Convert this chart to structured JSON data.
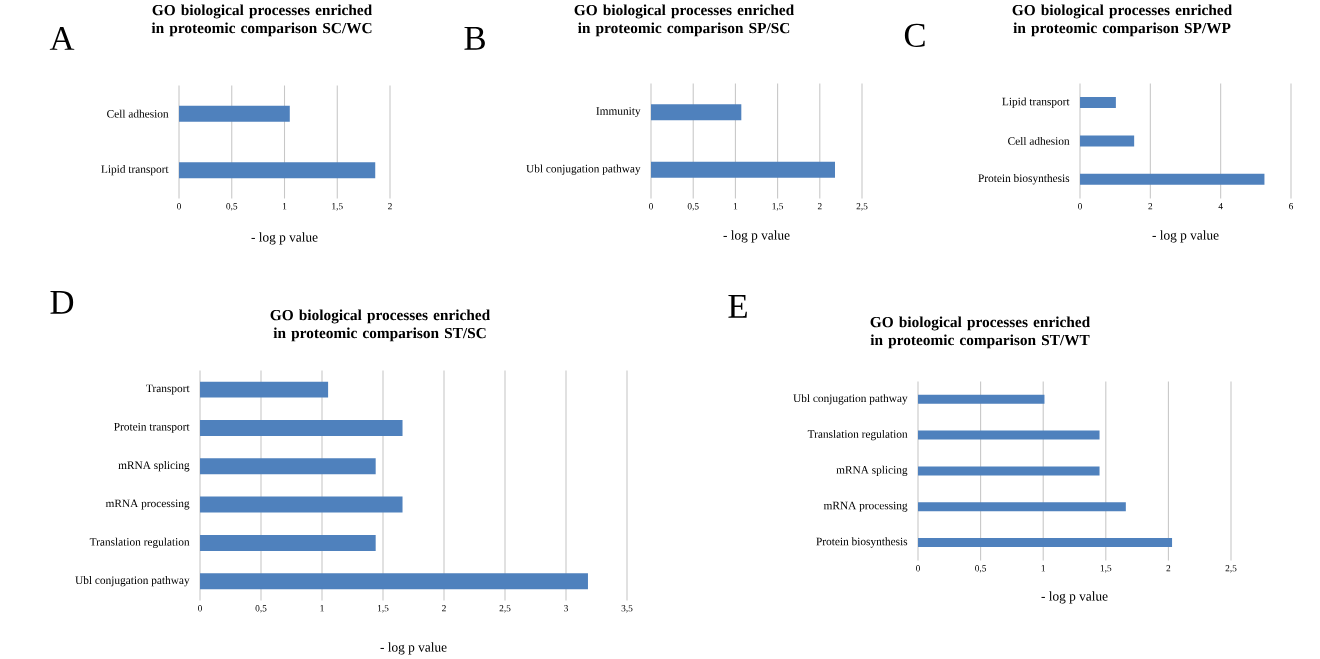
{
  "chart_data": [
    {
      "type": "bar",
      "orientation": "horizontal",
      "title": "GO biological processes enriched in proteomic comparison SC/WC",
      "xlabel": "- log p value",
      "annotations": [
        "A"
      ],
      "categories": [
        "Cell adhesion",
        "Lipid transport"
      ],
      "values": [
        1.05,
        1.86
      ],
      "color": "#4f81bd",
      "xlim": [
        0,
        2
      ],
      "xticks": [
        0,
        {
          "value": 0.5,
          "label": "0,5"
        },
        1,
        {
          "value": 1.5,
          "label": "1,5"
        },
        2
      ],
      "grid": "x"
    },
    {
      "type": "bar",
      "orientation": "horizontal",
      "title": "GO biological processes enriched in proteomic comparison SP/SC",
      "xlabel": "- log p value",
      "annotations": [
        "B"
      ],
      "categories": [
        "Immunity",
        "Ubl conjugation pathway"
      ],
      "values": [
        1.07,
        2.18
      ],
      "color": "#4f81bd",
      "xlim": [
        0,
        2.5
      ],
      "xticks": [
        0,
        {
          "value": 0.5,
          "label": "0,5"
        },
        1,
        {
          "value": 1.5,
          "label": "1,5"
        },
        2,
        {
          "value": 2.5,
          "label": "2,5"
        }
      ],
      "grid": "x"
    },
    {
      "type": "bar",
      "orientation": "horizontal",
      "title": "GO biological processes enriched in proteomic comparison SP/WP",
      "xlabel": "- log p value",
      "annotations": [
        "C"
      ],
      "categories": [
        "Lipid transport",
        "Cell adhesion",
        "Protein biosynthesis"
      ],
      "values": [
        1.02,
        1.54,
        5.25
      ],
      "color": "#4f81bd",
      "xlim": [
        0,
        6
      ],
      "xticks": [
        0,
        2,
        4,
        6
      ],
      "grid": "x"
    },
    {
      "type": "bar",
      "orientation": "horizontal",
      "title": "GO biological processes enriched in proteomic comparison ST/SC",
      "xlabel": "- log p value",
      "annotations": [
        "D"
      ],
      "categories": [
        "Transport",
        "Protein transport",
        "mRNA splicing",
        "mRNA processing",
        "Translation regulation",
        "Ubl conjugation pathway"
      ],
      "values": [
        1.05,
        1.66,
        1.44,
        1.66,
        1.44,
        3.18
      ],
      "color": "#4f81bd",
      "xlim": [
        0,
        3.5
      ],
      "xticks": [
        0,
        {
          "value": 0.5,
          "label": "0,5"
        },
        1,
        {
          "value": 1.5,
          "label": "1,5"
        },
        2,
        {
          "value": 2.5,
          "label": "2,5"
        },
        3,
        {
          "value": 3.5,
          "label": "3,5"
        }
      ],
      "grid": "x"
    },
    {
      "type": "bar",
      "orientation": "horizontal",
      "title": "GO biological processes enriched in proteomic comparison ST/WT",
      "xlabel": "- log p value",
      "annotations": [
        "E"
      ],
      "categories": [
        "Ubl conjugation pathway",
        "Translation regulation",
        "mRNA splicing",
        "mRNA processing",
        "Protein biosynthesis"
      ],
      "values": [
        1.01,
        1.45,
        1.45,
        1.66,
        2.03
      ],
      "color": "#4f81bd",
      "xlim": [
        0,
        2.5
      ],
      "xticks": [
        0,
        {
          "value": 0.5,
          "label": "0,5"
        },
        1,
        {
          "value": 1.5,
          "label": "1,5"
        },
        2,
        {
          "value": 2.5,
          "label": "2,5"
        }
      ],
      "grid": "x"
    }
  ]
}
